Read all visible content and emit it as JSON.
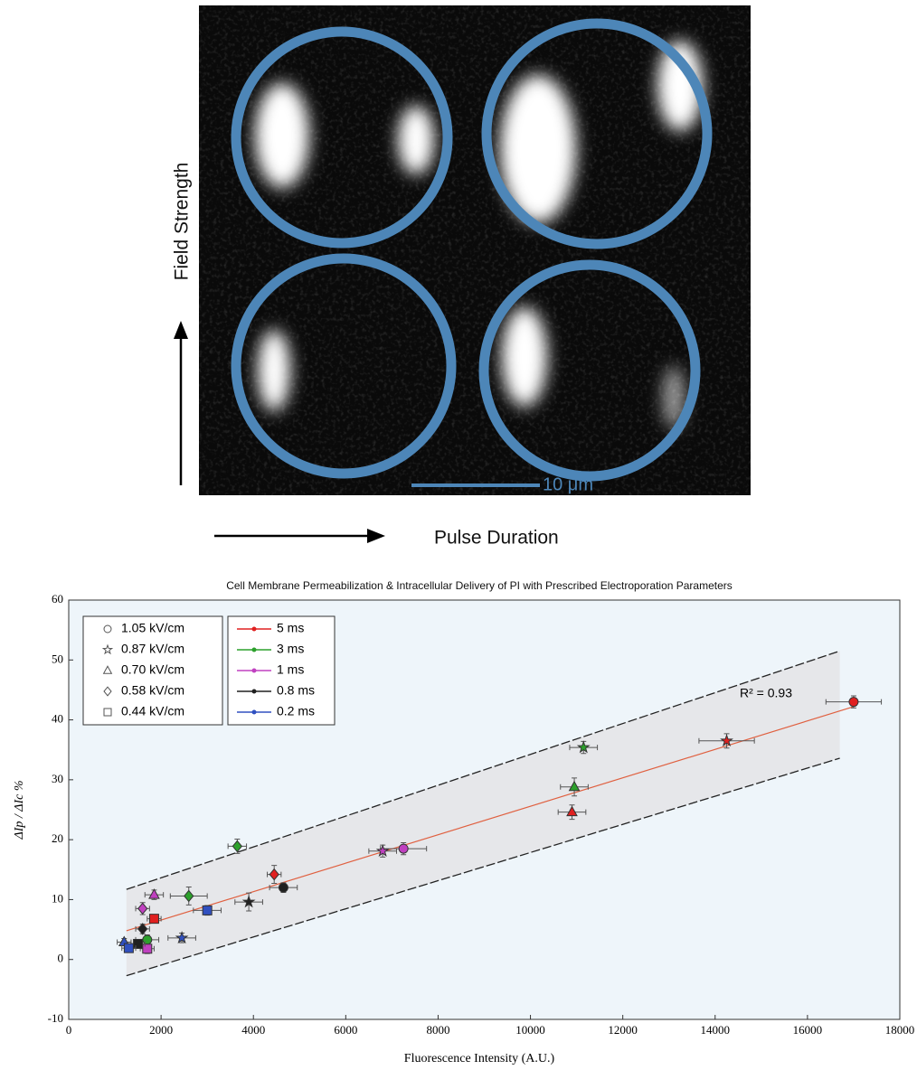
{
  "image": {
    "y_label": "Field Strength",
    "x_label": "Pulse Duration",
    "scale_bar": "10 μm"
  },
  "chart_data": {
    "type": "scatter",
    "title": "Cell Membrane Permeabilization & Intracellular Delivery of PI with Prescribed Electroporation Parameters",
    "x_label": "Fluorescence Intensity (A.U.)",
    "y_label": "ΔIp / ΔIc %",
    "xlim": [
      0,
      18000
    ],
    "ylim": [
      -10,
      60
    ],
    "xticks": [
      0,
      2000,
      4000,
      6000,
      8000,
      10000,
      12000,
      14000,
      16000,
      18000
    ],
    "yticks": [
      -10,
      0,
      10,
      20,
      30,
      40,
      50,
      60
    ],
    "shape_legend": [
      {
        "label": "1.05 kV/cm",
        "marker": "circle"
      },
      {
        "label": "0.87 kV/cm",
        "marker": "star"
      },
      {
        "label": "0.70 kV/cm",
        "marker": "triangle"
      },
      {
        "label": "0.58 kV/cm",
        "marker": "diamond"
      },
      {
        "label": "0.44 kV/cm",
        "marker": "square"
      }
    ],
    "series": [
      {
        "name": "5 ms",
        "color": "#e02020",
        "x": [
          17000,
          14250,
          10900,
          4450,
          1850
        ],
        "values": [
          43,
          36.5,
          24.6,
          14.2,
          6.8
        ],
        "markers": [
          "circle",
          "star",
          "triangle",
          "diamond",
          "square"
        ],
        "xerr": [
          600,
          600,
          300,
          150,
          150
        ],
        "yerr": [
          1,
          1.2,
          1.2,
          1.5,
          0.6
        ]
      },
      {
        "name": "3 ms",
        "color": "#2ca02c",
        "x": [
          11150,
          10950,
          3650,
          2600,
          1700
        ],
        "values": [
          35.4,
          28.8,
          18.9,
          10.6,
          3.3
        ],
        "markers": [
          "star",
          "triangle",
          "diamond",
          "diamond",
          "circle"
        ],
        "xerr": [
          300,
          300,
          200,
          400,
          250
        ],
        "yerr": [
          1,
          1.5,
          1.2,
          1.5,
          0.8
        ]
      },
      {
        "name": "1 ms",
        "color": "#c040c0",
        "x": [
          7250,
          6800,
          1850,
          1600,
          1700
        ],
        "values": [
          18.5,
          18.1,
          10.8,
          8.5,
          1.8
        ],
        "markers": [
          "circle",
          "star",
          "triangle",
          "diamond",
          "square"
        ],
        "xerr": [
          500,
          300,
          200,
          150,
          150
        ],
        "yerr": [
          1,
          1,
          0.8,
          1,
          0.8
        ]
      },
      {
        "name": "0.8 ms",
        "color": "#202020",
        "x": [
          4650,
          3900,
          1600,
          1500
        ],
        "values": [
          12,
          9.6,
          5.1,
          2.6
        ],
        "markers": [
          "circle",
          "star",
          "diamond",
          "square"
        ],
        "xerr": [
          300,
          300,
          150,
          150
        ],
        "yerr": [
          0.8,
          1.5,
          0.8,
          0.6
        ]
      },
      {
        "name": "0.2 ms",
        "color": "#3050c0",
        "x": [
          3000,
          2450,
          1200,
          1300
        ],
        "values": [
          8.2,
          3.6,
          2.9,
          1.9
        ],
        "markers": [
          "square",
          "star",
          "triangle",
          "square"
        ],
        "xerr": [
          300,
          300,
          150,
          150
        ],
        "yerr": [
          0.8,
          0.8,
          0.6,
          0.6
        ]
      }
    ],
    "fit": {
      "color": "#e06040",
      "x": [
        1250,
        17000
      ],
      "y": [
        4.8,
        42.2
      ]
    },
    "band": {
      "upper": {
        "x": [
          1250,
          16700
        ],
        "y": [
          11.7,
          51.5
        ]
      },
      "lower": {
        "x": [
          1250,
          16700
        ],
        "y": [
          -2.7,
          33.6
        ]
      }
    },
    "annotation": "R² = 0.93"
  }
}
